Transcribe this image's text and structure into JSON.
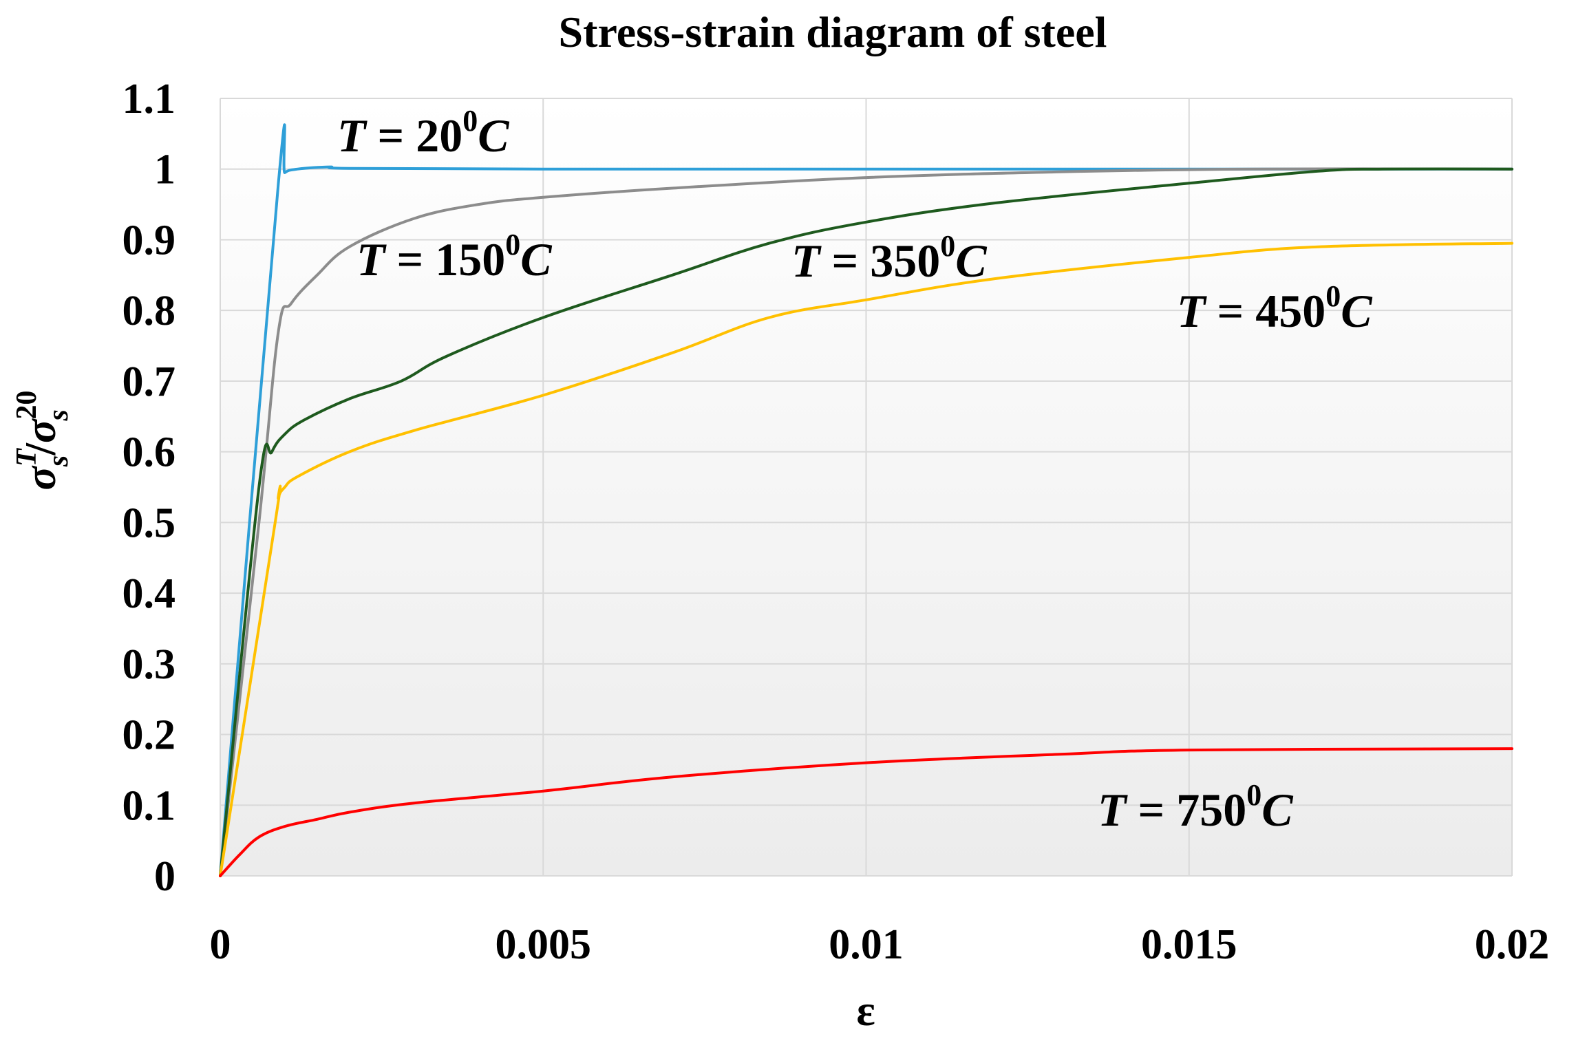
{
  "chart_data": {
    "type": "line",
    "title": "Stress-strain diagram of steel",
    "xlabel": "ε",
    "ylabel": {
      "base": "σ",
      "sup1": "T",
      "sub1": "s",
      "slash": "/",
      "sup2": "20",
      "sub2": "s"
    },
    "xlim": [
      0,
      0.02
    ],
    "ylim": [
      0,
      1.1
    ],
    "x_ticks": [
      0,
      0.005,
      0.01,
      0.015,
      0.02
    ],
    "x_tick_labels": [
      "0",
      "0.005",
      "0.01",
      "0.015",
      "0.02"
    ],
    "y_ticks": [
      0,
      0.1,
      0.2,
      0.3,
      0.4,
      0.5,
      0.6,
      0.7,
      0.8,
      0.9,
      1,
      1.1
    ],
    "y_tick_labels": [
      "0",
      "0.1",
      "0.2",
      "0.3",
      "0.4",
      "0.5",
      "0.6",
      "0.7",
      "0.8",
      "0.9",
      "1",
      "1.1"
    ],
    "grid": true,
    "series": [
      {
        "name": "T = 20°C",
        "color": "#2e9fd8",
        "points": [
          [
            0,
            0
          ],
          [
            0.0009,
            0.98
          ],
          [
            0.001,
            0.995
          ],
          [
            0.0012,
            1.0
          ],
          [
            0.0017,
            1.003
          ],
          [
            0.002,
            1.001
          ],
          [
            0.005,
            1.0
          ],
          [
            0.01,
            1.0
          ],
          [
            0.015,
            1.0
          ],
          [
            0.02,
            1.0
          ]
        ]
      },
      {
        "name": "T = 150°C",
        "color": "#8c8c8c",
        "points": [
          [
            0,
            0
          ],
          [
            0.0006,
            0.5
          ],
          [
            0.0009,
            0.77
          ],
          [
            0.0011,
            0.81
          ],
          [
            0.0015,
            0.85
          ],
          [
            0.002,
            0.89
          ],
          [
            0.003,
            0.93
          ],
          [
            0.004,
            0.95
          ],
          [
            0.005,
            0.96
          ],
          [
            0.007,
            0.973
          ],
          [
            0.01,
            0.988
          ],
          [
            0.013,
            0.996
          ],
          [
            0.016,
            1.0
          ],
          [
            0.02,
            1.0
          ]
        ]
      },
      {
        "name": "T = 350°C",
        "color": "#1e5a1e",
        "points": [
          [
            0,
            0
          ],
          [
            0.0006,
            0.55
          ],
          [
            0.0008,
            0.6
          ],
          [
            0.001,
            0.625
          ],
          [
            0.0013,
            0.645
          ],
          [
            0.002,
            0.675
          ],
          [
            0.0028,
            0.7
          ],
          [
            0.0035,
            0.735
          ],
          [
            0.005,
            0.79
          ],
          [
            0.007,
            0.85
          ],
          [
            0.0085,
            0.895
          ],
          [
            0.01,
            0.925
          ],
          [
            0.012,
            0.952
          ],
          [
            0.015,
            0.98
          ],
          [
            0.017,
            0.997
          ],
          [
            0.018,
            1.0
          ],
          [
            0.02,
            1.0
          ]
        ]
      },
      {
        "name": "T = 450°C",
        "color": "#ffc000",
        "points": [
          [
            0,
            0
          ],
          [
            0.00085,
            0.5
          ],
          [
            0.0009,
            0.535
          ],
          [
            0.001,
            0.55
          ],
          [
            0.0012,
            0.565
          ],
          [
            0.002,
            0.6
          ],
          [
            0.003,
            0.63
          ],
          [
            0.005,
            0.68
          ],
          [
            0.007,
            0.74
          ],
          [
            0.0085,
            0.79
          ],
          [
            0.01,
            0.815
          ],
          [
            0.012,
            0.845
          ],
          [
            0.015,
            0.875
          ],
          [
            0.017,
            0.89
          ],
          [
            0.02,
            0.895
          ]
        ]
      },
      {
        "name": "T = 750°C",
        "color": "#ff0000",
        "points": [
          [
            0,
            0
          ],
          [
            0.0003,
            0.03
          ],
          [
            0.0006,
            0.055
          ],
          [
            0.001,
            0.07
          ],
          [
            0.0015,
            0.08
          ],
          [
            0.002,
            0.09
          ],
          [
            0.003,
            0.103
          ],
          [
            0.005,
            0.12
          ],
          [
            0.007,
            0.14
          ],
          [
            0.01,
            0.16
          ],
          [
            0.013,
            0.172
          ],
          [
            0.015,
            0.178
          ],
          [
            0.02,
            0.18
          ]
        ]
      }
    ],
    "annotations": [
      {
        "var": "T",
        "eq": " = ",
        "num": "20",
        "sup": "0",
        "unit": "C"
      },
      {
        "var": "T",
        "eq": " = ",
        "num": "150",
        "sup": "0",
        "unit": "C"
      },
      {
        "var": "T",
        "eq": " = ",
        "num": "350",
        "sup": "0",
        "unit": "C"
      },
      {
        "var": "T",
        "eq": " = ",
        "num": "450",
        "sup": "0",
        "unit": "C"
      },
      {
        "var": "T",
        "eq": " = ",
        "num": "750",
        "sup": "0",
        "unit": "C"
      }
    ]
  }
}
